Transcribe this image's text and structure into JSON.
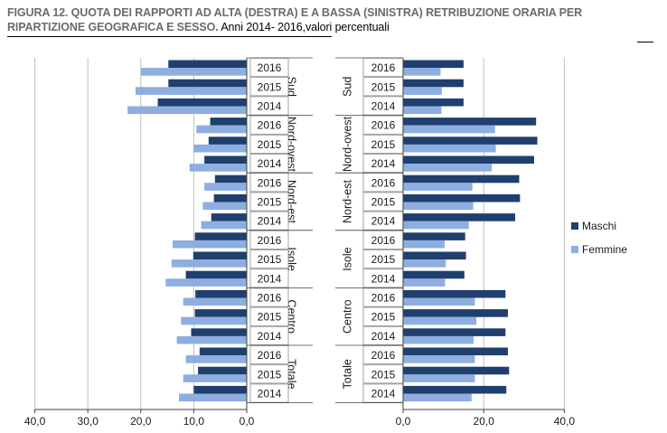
{
  "title": {
    "bold": "FIGURA 12. QUOTA DEI RAPPORTI AD ALTA (DESTRA) E A BASSA (SINISTRA) RETRIBUZIONE ORARIA PER RIPARTIZIONE GEOGRAFICA E SESSO.",
    "rest": " Anni 2014- 2016,valori percentuali"
  },
  "colors": {
    "maschi": "#1f3f6e",
    "femmine": "#8eaee0",
    "grid": "#bfbfbf",
    "axis": "#404040"
  },
  "chart_data": [
    {
      "type": "bar",
      "orientation": "horizontal",
      "side": "left",
      "subject": "bassa retribuzione (sinistra)",
      "groups": [
        "Sud",
        "Nord-ovest",
        "Nord-est",
        "Isole",
        "Centro",
        "Totale"
      ],
      "years": [
        "2016",
        "2015",
        "2014"
      ],
      "series": [
        {
          "name": "Maschi",
          "values": [
            [
              14.8,
              14.8,
              16.8
            ],
            [
              6.9,
              7.2,
              8.0
            ],
            [
              6.0,
              6.2,
              6.7
            ],
            [
              9.8,
              10.1,
              11.5
            ],
            [
              9.7,
              9.8,
              10.5
            ],
            [
              8.9,
              9.2,
              10.0
            ]
          ]
        },
        {
          "name": "Femmine",
          "values": [
            [
              20.0,
              21.0,
              22.5
            ],
            [
              9.5,
              10.0,
              10.8
            ],
            [
              8.0,
              8.3,
              8.6
            ],
            [
              14.0,
              14.2,
              15.3
            ],
            [
              12.0,
              12.4,
              13.2
            ],
            [
              11.5,
              12.0,
              12.8
            ]
          ]
        }
      ],
      "xlim": [
        40,
        0
      ],
      "xticks": [
        "40,0",
        "30,0",
        "20,0",
        "10,0",
        "0,0"
      ]
    },
    {
      "type": "bar",
      "orientation": "horizontal",
      "side": "right",
      "subject": "alta retribuzione (destra)",
      "groups": [
        "Sud",
        "Nord-ovest",
        "Nord-est",
        "Isole",
        "Centro",
        "Totale"
      ],
      "years": [
        "2016",
        "2015",
        "2014"
      ],
      "series": [
        {
          "name": "Maschi",
          "values": [
            [
              15.0,
              15.0,
              15.0
            ],
            [
              33.0,
              33.3,
              32.5
            ],
            [
              28.8,
              29.0,
              27.8
            ],
            [
              15.4,
              15.6,
              15.2
            ],
            [
              25.4,
              26.0,
              25.4
            ],
            [
              26.0,
              26.3,
              25.6
            ]
          ]
        },
        {
          "name": "Femmine",
          "values": [
            [
              9.3,
              9.6,
              9.5
            ],
            [
              22.8,
              23.0,
              22.0
            ],
            [
              17.2,
              17.4,
              16.3
            ],
            [
              10.3,
              10.6,
              10.4
            ],
            [
              17.8,
              18.2,
              17.5
            ],
            [
              17.8,
              17.8,
              17.0
            ]
          ]
        }
      ],
      "xlim": [
        0,
        40
      ],
      "xticks": [
        "0,0",
        "20,0",
        "40,0"
      ]
    }
  ],
  "legend": {
    "items": [
      "Maschi",
      "Femmine"
    ],
    "position": "right"
  }
}
